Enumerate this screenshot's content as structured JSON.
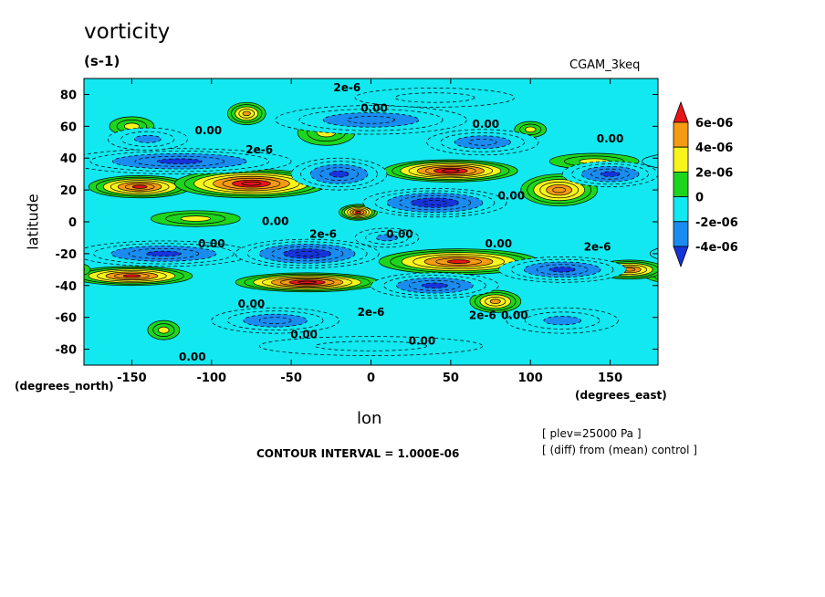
{
  "chart_data": {
    "type": "heatmap",
    "title": "vorticity",
    "units": "(s-1)",
    "model_label": "CGAM_3keq",
    "xlabel": "lon",
    "ylabel": "latitude",
    "x_units": "(degrees_east)",
    "y_units": "(degrees_north)",
    "xlim": [
      -180,
      180
    ],
    "ylim": [
      -90,
      90
    ],
    "x_ticks": [
      -150,
      -100,
      -50,
      0,
      50,
      100,
      150
    ],
    "y_ticks": [
      -80,
      -60,
      -40,
      -20,
      0,
      20,
      40,
      60,
      80
    ],
    "contour_interval": "CONTOUR INTERVAL = 1.000E-06",
    "level_note": "[ plev=25000 Pa ]",
    "diff_note": "[ (diff) from (mean) control ]",
    "colorbar": {
      "ticks": [
        "6e-06",
        "4e-06",
        "2e-06",
        "0",
        "-2e-06",
        "-4e-06"
      ],
      "bands": [
        {
          "min": 6e-06,
          "max": null,
          "color": "#e8141a"
        },
        {
          "min": 4e-06,
          "max": 6e-06,
          "color": "#f59a13"
        },
        {
          "min": 2e-06,
          "max": 4e-06,
          "color": "#f8f51c"
        },
        {
          "min": 0,
          "max": 2e-06,
          "color": "#1ed51e"
        },
        {
          "min": -2e-06,
          "max": 0,
          "color": "#12e8f0"
        },
        {
          "min": -4e-06,
          "max": -2e-06,
          "color": "#1a8cf0"
        },
        {
          "min": null,
          "max": -4e-06,
          "color": "#1633d9"
        }
      ],
      "extreme_low_color": "#0a14c8"
    },
    "contour_labels": [
      {
        "text": "2e-6",
        "lon": -15,
        "lat": 84
      },
      {
        "text": "0.00",
        "lon": 2,
        "lat": 71
      },
      {
        "text": "0.00",
        "lon": 72,
        "lat": 61
      },
      {
        "text": "0.00",
        "lon": -102,
        "lat": 57
      },
      {
        "text": "0.00",
        "lon": 150,
        "lat": 52
      },
      {
        "text": "2e-6",
        "lon": -70,
        "lat": 45
      },
      {
        "text": "0.00",
        "lon": 88,
        "lat": 16
      },
      {
        "text": "0.00",
        "lon": -60,
        "lat": 0
      },
      {
        "text": "2e-6",
        "lon": -30,
        "lat": -8
      },
      {
        "text": "0.00",
        "lon": 18,
        "lat": -8
      },
      {
        "text": "0.00",
        "lon": -100,
        "lat": -14
      },
      {
        "text": "0.00",
        "lon": 80,
        "lat": -14
      },
      {
        "text": "2e-6",
        "lon": 142,
        "lat": -16
      },
      {
        "text": "0.00",
        "lon": -75,
        "lat": -52
      },
      {
        "text": "2e-6",
        "lon": 0,
        "lat": -57
      },
      {
        "text": "2e-6",
        "lon": 70,
        "lat": -59
      },
      {
        "text": "0.00",
        "lon": 90,
        "lat": -59
      },
      {
        "text": "0.00",
        "lon": -42,
        "lat": -71
      },
      {
        "text": "0.00",
        "lon": 32,
        "lat": -75
      },
      {
        "text": "0.00",
        "lon": -112,
        "lat": -85
      }
    ],
    "features": [
      {
        "lon": -145,
        "lat": 22,
        "value": 7e-06,
        "rx": 32,
        "ry": 7
      },
      {
        "lon": -75,
        "lat": 24,
        "value": 8e-06,
        "rx": 48,
        "ry": 9
      },
      {
        "lon": -8,
        "lat": 6,
        "value": 7e-06,
        "rx": 12,
        "ry": 5
      },
      {
        "lon": 50,
        "lat": 32,
        "value": 8e-06,
        "rx": 42,
        "ry": 7
      },
      {
        "lon": 118,
        "lat": 20,
        "value": 6e-06,
        "rx": 24,
        "ry": 10
      },
      {
        "lon": -150,
        "lat": -34,
        "value": 7e-06,
        "rx": 38,
        "ry": 6
      },
      {
        "lon": -40,
        "lat": -38,
        "value": 8e-06,
        "rx": 45,
        "ry": 6
      },
      {
        "lon": 55,
        "lat": -25,
        "value": 7e-06,
        "rx": 50,
        "ry": 8
      },
      {
        "lon": 162,
        "lat": -30,
        "value": 6e-06,
        "rx": 22,
        "ry": 6
      },
      {
        "lon": -78,
        "lat": 68,
        "value": 5e-06,
        "rx": 12,
        "ry": 7
      },
      {
        "lon": -28,
        "lat": 56,
        "value": 3e-06,
        "rx": 18,
        "ry": 8
      },
      {
        "lon": 78,
        "lat": -50,
        "value": 5e-06,
        "rx": 16,
        "ry": 7
      },
      {
        "lon": -150,
        "lat": 60,
        "value": 3e-06,
        "rx": 14,
        "ry": 6
      },
      {
        "lon": 100,
        "lat": 58,
        "value": 3e-06,
        "rx": 10,
        "ry": 5
      },
      {
        "lon": -130,
        "lat": -68,
        "value": 3e-06,
        "rx": 10,
        "ry": 6
      },
      {
        "lon": -110,
        "lat": 2,
        "value": 3e-06,
        "rx": 28,
        "ry": 5
      },
      {
        "lon": 140,
        "lat": 38,
        "value": 3e-06,
        "rx": 28,
        "ry": 5
      },
      {
        "lon": -120,
        "lat": 38,
        "value": -5e-06,
        "rx": 70,
        "ry": 8
      },
      {
        "lon": -20,
        "lat": 30,
        "value": -5e-06,
        "rx": 30,
        "ry": 10
      },
      {
        "lon": 40,
        "lat": 12,
        "value": -6e-06,
        "rx": 45,
        "ry": 9
      },
      {
        "lon": 150,
        "lat": 30,
        "value": -5e-06,
        "rx": 30,
        "ry": 8
      },
      {
        "lon": -130,
        "lat": -20,
        "value": -5e-06,
        "rx": 55,
        "ry": 8
      },
      {
        "lon": -40,
        "lat": -20,
        "value": -6e-06,
        "rx": 45,
        "ry": 9
      },
      {
        "lon": 40,
        "lat": -40,
        "value": -5e-06,
        "rx": 40,
        "ry": 8
      },
      {
        "lon": 120,
        "lat": -30,
        "value": -5e-06,
        "rx": 40,
        "ry": 8
      },
      {
        "lon": 0,
        "lat": 64,
        "value": -4e-06,
        "rx": 60,
        "ry": 9
      },
      {
        "lon": 70,
        "lat": 50,
        "value": -4e-06,
        "rx": 35,
        "ry": 8
      },
      {
        "lon": -60,
        "lat": -62,
        "value": -4e-06,
        "rx": 40,
        "ry": 8
      },
      {
        "lon": 120,
        "lat": -62,
        "value": -3e-06,
        "rx": 35,
        "ry": 8
      },
      {
        "lon": -140,
        "lat": 52,
        "value": -3e-06,
        "rx": 25,
        "ry": 7
      },
      {
        "lon": 10,
        "lat": -10,
        "value": -3e-06,
        "rx": 20,
        "ry": 6
      },
      {
        "lon": 0,
        "lat": -78,
        "value": -2e-06,
        "rx": 70,
        "ry": 6
      },
      {
        "lon": 40,
        "lat": 78,
        "value": -2e-06,
        "rx": 50,
        "ry": 6
      }
    ]
  }
}
